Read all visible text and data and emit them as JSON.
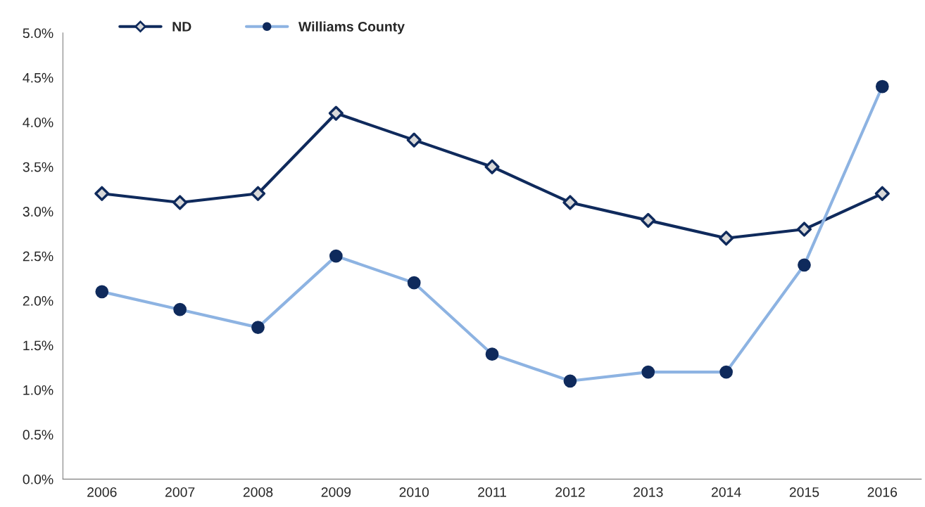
{
  "chart_data": {
    "type": "line",
    "categories": [
      "2006",
      "2007",
      "2008",
      "2009",
      "2010",
      "2011",
      "2012",
      "2013",
      "2014",
      "2015",
      "2016"
    ],
    "series": [
      {
        "name": "ND",
        "color": "#0f2a5c",
        "marker": "diamond",
        "colors": [
          "#d9d9d9",
          "#d9d9d9",
          "#d9d9d9",
          "#d9d9d9",
          "#d9d9d9",
          "#d9d9d9",
          "#d9d9d9",
          "#d9d9d9",
          "#d9d9d9",
          "#d9d9d9",
          "#d9d9d9"
        ],
        "values": [
          3.2,
          3.1,
          3.2,
          4.1,
          3.8,
          3.5,
          3.1,
          2.9,
          2.7,
          2.8,
          3.2
        ]
      },
      {
        "name": "Williams County",
        "color": "#8db3e2",
        "marker": "circle",
        "colors": [
          "#0f2a5c",
          "#0f2a5c",
          "#0f2a5c",
          "#0f2a5c",
          "#0f2a5c",
          "#0f2a5c",
          "#0f2a5c",
          "#0f2a5c",
          "#0f2a5c",
          "#0f2a5c",
          "#0f2a5c"
        ],
        "values": [
          2.1,
          1.9,
          1.7,
          2.5,
          2.2,
          1.4,
          1.1,
          1.2,
          1.2,
          2.4,
          4.4
        ]
      }
    ],
    "ylim": [
      0,
      5
    ],
    "yticks": [
      {
        "value": 0,
        "label": "0.0%"
      },
      {
        "value": 0.5,
        "label": "0.5%"
      },
      {
        "value": 1,
        "label": "1.0%"
      },
      {
        "value": 1.5,
        "label": "1.5%"
      },
      {
        "value": 2,
        "label": "2.0%"
      },
      {
        "value": 2.5,
        "label": "2.5%"
      },
      {
        "value": 3,
        "label": "3.0%"
      },
      {
        "value": 3.5,
        "label": "3.5%"
      },
      {
        "value": 4,
        "label": "4.0%"
      },
      {
        "value": 4.5,
        "label": "4.5%"
      },
      {
        "value": 5,
        "label": "5.0%"
      }
    ],
    "grid": false,
    "legend": "top left"
  }
}
